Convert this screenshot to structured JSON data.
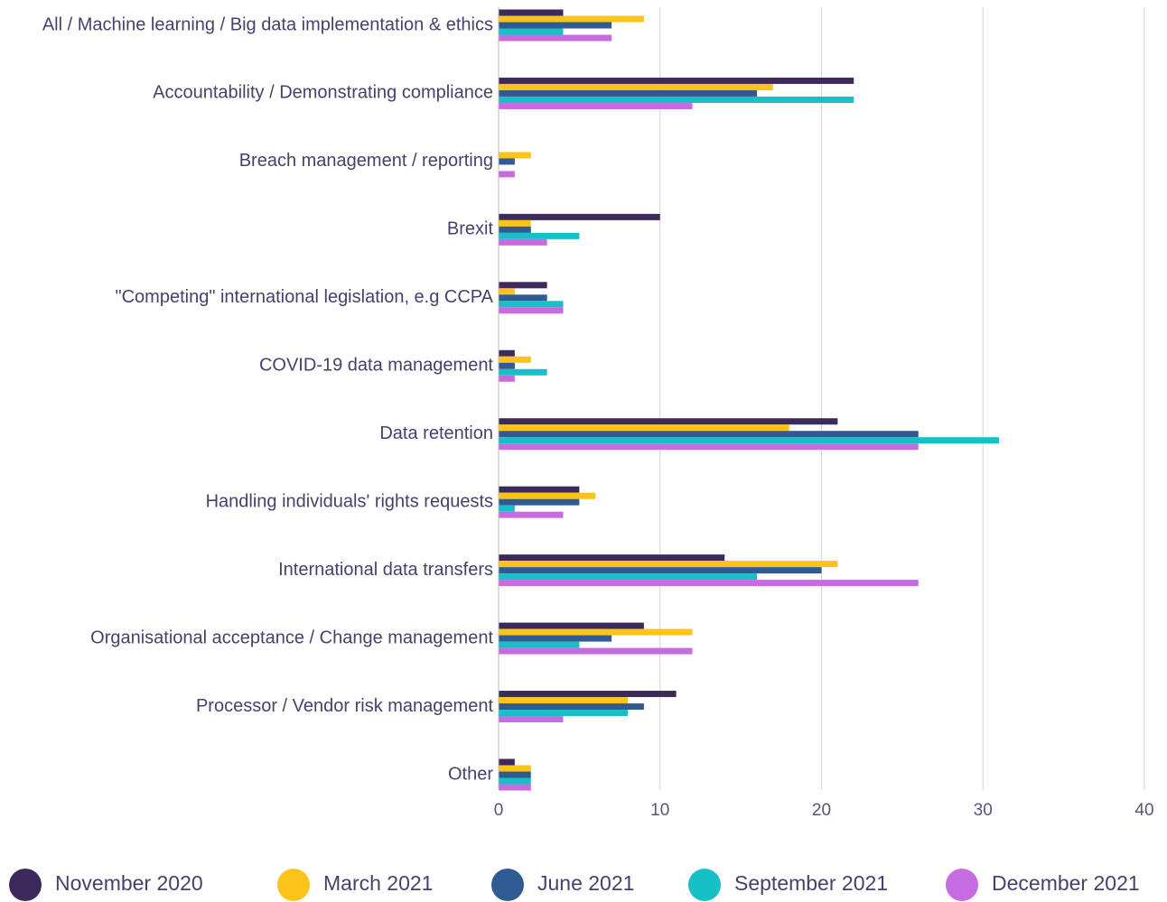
{
  "chart_data": {
    "type": "bar",
    "orientation": "horizontal",
    "categories": [
      "All / Machine learning / Big data implementation & ethics",
      "Accountability / Demonstrating compliance",
      "Breach management / reporting",
      "Brexit",
      "\"Competing\" international legislation, e.g CCPA",
      "COVID-19 data management",
      "Data retention",
      "Handling individuals' rights requests",
      "International data transfers",
      "Organisational acceptance / Change management",
      "Processor / Vendor risk management",
      "Other"
    ],
    "series": [
      {
        "name": "November 2020",
        "color": "#3b2a5a",
        "values": [
          4,
          22,
          0,
          10,
          3,
          1,
          21,
          5,
          14,
          9,
          11,
          1
        ]
      },
      {
        "name": "March 2021",
        "color": "#fcc419",
        "values": [
          9,
          17,
          2,
          2,
          1,
          2,
          18,
          6,
          21,
          12,
          8,
          2
        ]
      },
      {
        "name": "June 2021",
        "color": "#2f5a92",
        "values": [
          7,
          16,
          1,
          2,
          3,
          1,
          26,
          5,
          20,
          7,
          9,
          2
        ]
      },
      {
        "name": "September 2021",
        "color": "#17bfc6",
        "values": [
          4,
          22,
          0,
          5,
          4,
          3,
          31,
          1,
          16,
          5,
          8,
          2
        ]
      },
      {
        "name": "December 2021",
        "color": "#c76be0",
        "values": [
          7,
          12,
          1,
          3,
          4,
          1,
          26,
          4,
          26,
          12,
          4,
          2
        ]
      }
    ],
    "xlim": [
      0,
      40
    ],
    "xticks": [
      0,
      10,
      20,
      30,
      40
    ],
    "grid": true,
    "legend": "bottom"
  }
}
